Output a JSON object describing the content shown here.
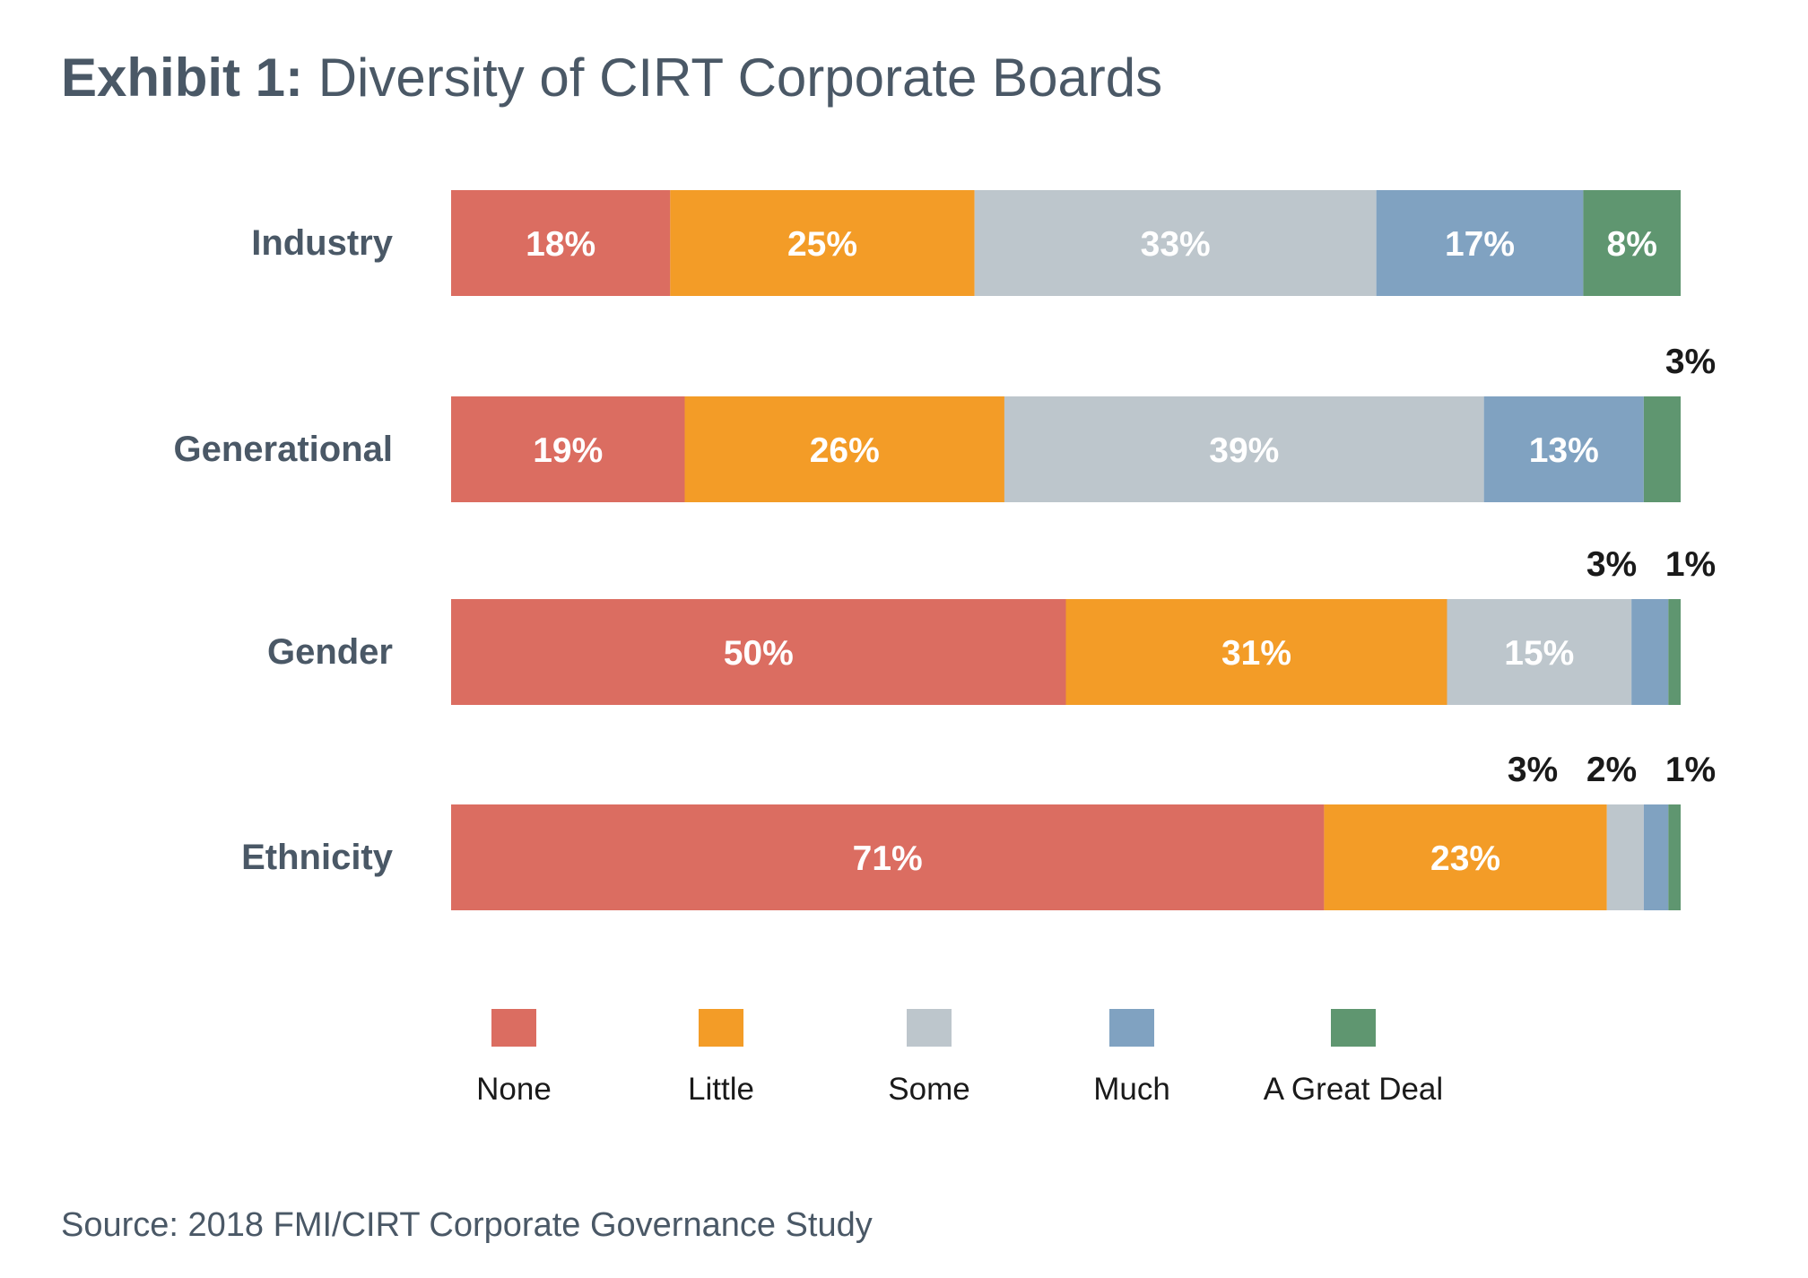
{
  "title": {
    "lead": "Exhibit 1:",
    "text": "Diversity of CIRT Corporate Boards"
  },
  "source": "Source: 2018 FMI/CIRT Corporate Governance Study",
  "chart_data": {
    "type": "bar",
    "orientation": "horizontal",
    "stacked": true,
    "title": "Exhibit 1: Diversity of CIRT Corporate Boards",
    "categories": [
      "Industry",
      "Generational",
      "Gender",
      "Ethnicity"
    ],
    "series": [
      {
        "name": "None",
        "color": "#db6d61",
        "values": [
          18,
          19,
          50,
          71
        ],
        "labels": [
          "18%",
          "19%",
          "50%",
          "71%"
        ]
      },
      {
        "name": "Little",
        "color": "#f39c27",
        "values": [
          25,
          26,
          31,
          23
        ],
        "labels": [
          "25%",
          "26%",
          "31%",
          "23%"
        ]
      },
      {
        "name": "Some",
        "color": "#bdc6cc",
        "values": [
          33,
          39,
          15,
          3
        ],
        "labels": [
          "33%",
          "39%",
          "15%",
          "3%"
        ]
      },
      {
        "name": "Much",
        "color": "#80a2c1",
        "values": [
          17,
          13,
          3,
          2
        ],
        "labels": [
          "17%",
          "13%",
          "3%",
          "2%"
        ]
      },
      {
        "name": "A Great Deal",
        "color": "#5f9670",
        "values": [
          8,
          3,
          1,
          1
        ],
        "labels": [
          "8%",
          "3%",
          "1%",
          "1%"
        ]
      }
    ],
    "legend_position": "bottom",
    "grid": false
  }
}
